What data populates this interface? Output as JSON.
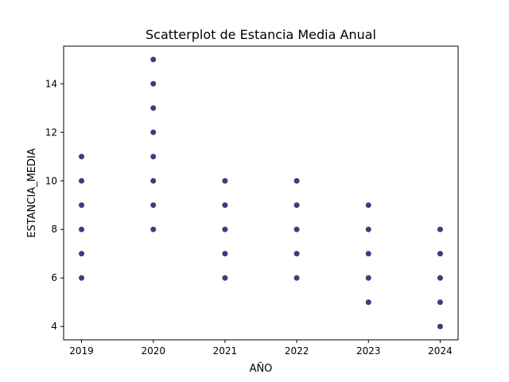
{
  "chart_data": {
    "type": "scatter",
    "title": "Scatterplot de Estancia Media Anual",
    "xlabel": "AÑO",
    "ylabel": "ESTANCIA_MEDIA",
    "xlim": [
      2018.75,
      2024.25
    ],
    "ylim": [
      3.45,
      15.55
    ],
    "xticks": [
      "2019",
      "2020",
      "2021",
      "2022",
      "2023",
      "2024"
    ],
    "yticks": [
      "4",
      "6",
      "8",
      "10",
      "12",
      "14"
    ],
    "grid": false,
    "point_color": "#3f3b7f",
    "points": [
      {
        "x": 2019,
        "y": 6
      },
      {
        "x": 2019,
        "y": 7
      },
      {
        "x": 2019,
        "y": 8
      },
      {
        "x": 2019,
        "y": 9
      },
      {
        "x": 2019,
        "y": 10
      },
      {
        "x": 2019,
        "y": 11
      },
      {
        "x": 2020,
        "y": 8
      },
      {
        "x": 2020,
        "y": 9
      },
      {
        "x": 2020,
        "y": 10
      },
      {
        "x": 2020,
        "y": 11
      },
      {
        "x": 2020,
        "y": 12
      },
      {
        "x": 2020,
        "y": 13
      },
      {
        "x": 2020,
        "y": 14
      },
      {
        "x": 2020,
        "y": 15
      },
      {
        "x": 2021,
        "y": 6
      },
      {
        "x": 2021,
        "y": 7
      },
      {
        "x": 2021,
        "y": 8
      },
      {
        "x": 2021,
        "y": 9
      },
      {
        "x": 2021,
        "y": 10
      },
      {
        "x": 2022,
        "y": 6
      },
      {
        "x": 2022,
        "y": 7
      },
      {
        "x": 2022,
        "y": 8
      },
      {
        "x": 2022,
        "y": 9
      },
      {
        "x": 2022,
        "y": 10
      },
      {
        "x": 2023,
        "y": 5
      },
      {
        "x": 2023,
        "y": 6
      },
      {
        "x": 2023,
        "y": 7
      },
      {
        "x": 2023,
        "y": 8
      },
      {
        "x": 2023,
        "y": 9
      },
      {
        "x": 2024,
        "y": 4
      },
      {
        "x": 2024,
        "y": 5
      },
      {
        "x": 2024,
        "y": 6
      },
      {
        "x": 2024,
        "y": 7
      },
      {
        "x": 2024,
        "y": 8
      }
    ]
  }
}
